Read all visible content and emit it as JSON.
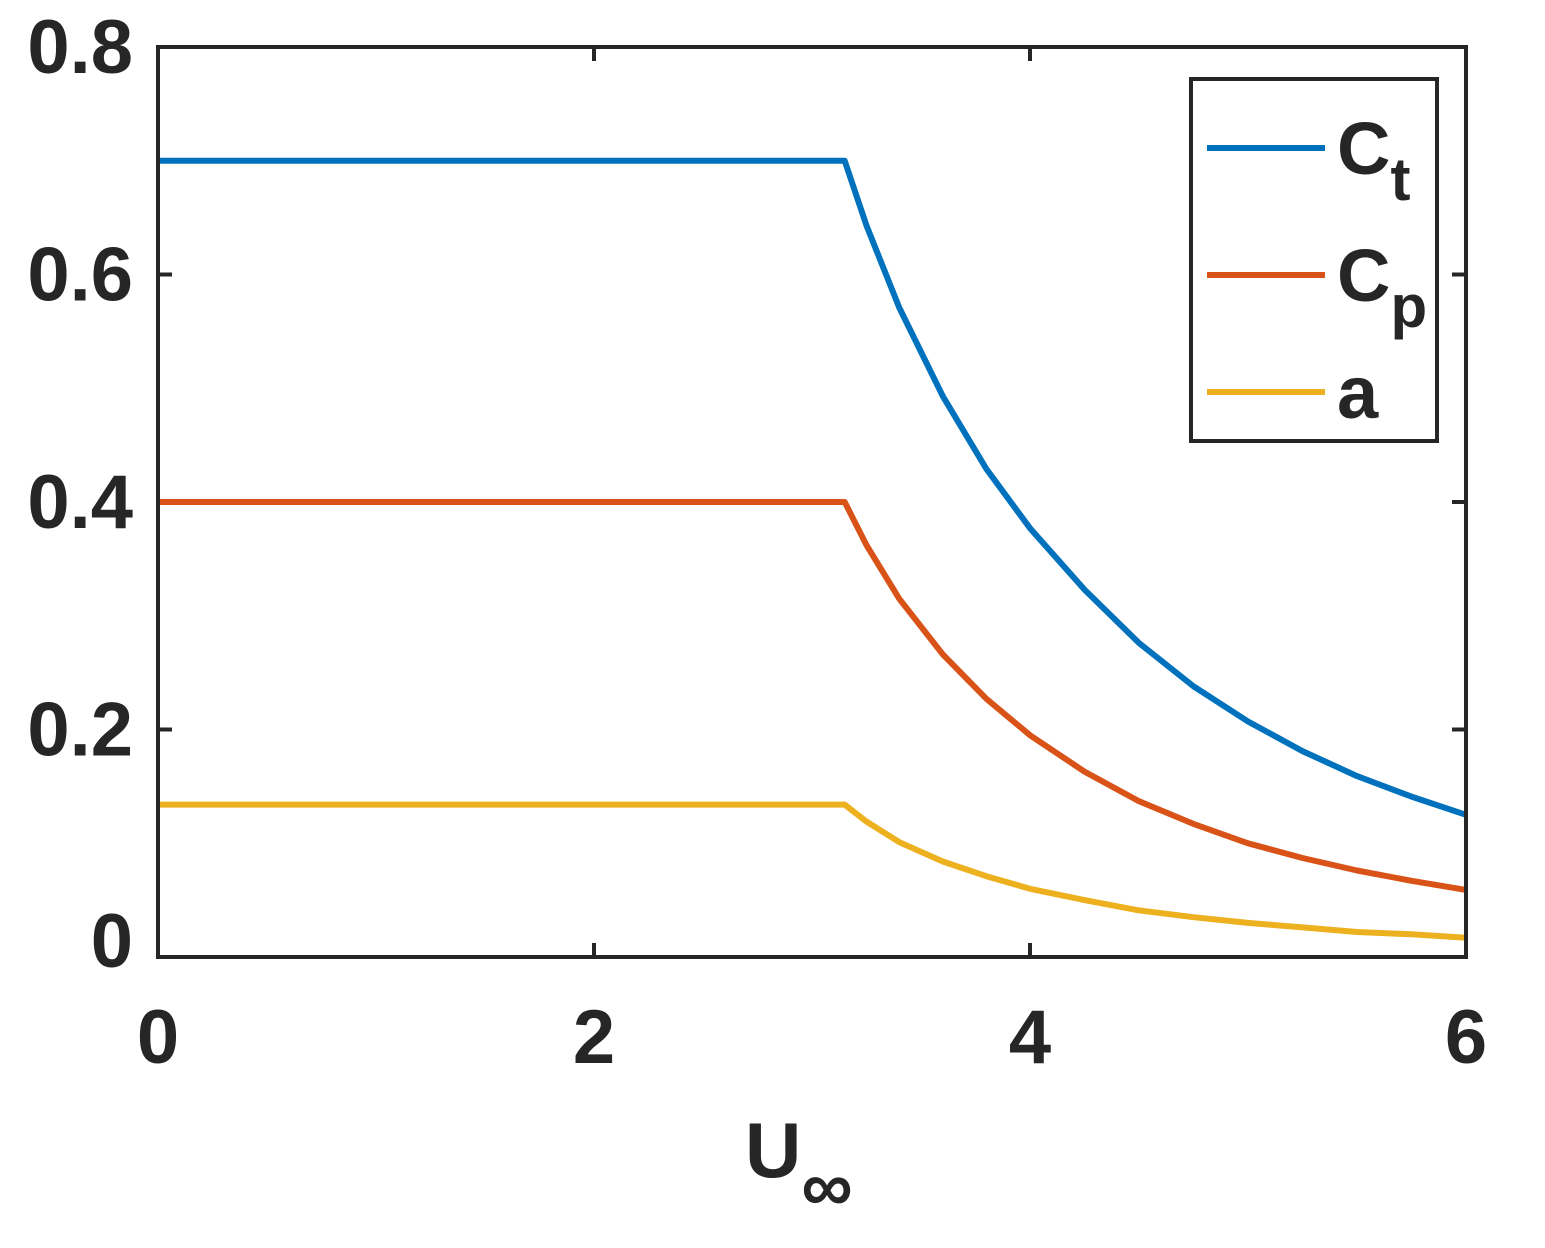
{
  "chart_data": {
    "type": "line",
    "title": "",
    "xlabel": {
      "main": "U",
      "sub": "∞"
    },
    "ylabel": "",
    "xlim": [
      0,
      6
    ],
    "ylim": [
      0,
      0.8
    ],
    "xticks": [
      0,
      2,
      4,
      6
    ],
    "xtick_labels": [
      "0",
      "2",
      "4",
      "6"
    ],
    "yticks": [
      0,
      0.2,
      0.4,
      0.6,
      0.8
    ],
    "ytick_labels": [
      "0",
      "0.2",
      "0.4",
      "0.6",
      "0.8"
    ],
    "grid": false,
    "legend_position": "top-right",
    "series": [
      {
        "name": {
          "main": "C",
          "sub": "t"
        },
        "color": "#0072BD",
        "x": [
          0,
          3.15,
          3.25,
          3.4,
          3.6,
          3.8,
          4.0,
          4.25,
          4.5,
          4.75,
          5.0,
          5.25,
          5.5,
          5.75,
          6.0
        ],
        "values": [
          0.7,
          0.7,
          0.643,
          0.571,
          0.493,
          0.429,
          0.377,
          0.323,
          0.276,
          0.238,
          0.207,
          0.181,
          0.159,
          0.141,
          0.125
        ]
      },
      {
        "name": {
          "main": "C",
          "sub": "p"
        },
        "color": "#D95319",
        "x": [
          0,
          3.15,
          3.25,
          3.4,
          3.6,
          3.8,
          4.0,
          4.25,
          4.5,
          4.75,
          5.0,
          5.25,
          5.5,
          5.75,
          6.0
        ],
        "values": [
          0.4,
          0.4,
          0.362,
          0.315,
          0.266,
          0.227,
          0.195,
          0.163,
          0.137,
          0.117,
          0.1,
          0.087,
          0.076,
          0.067,
          0.059
        ]
      },
      {
        "name": {
          "main": "a",
          "sub": ""
        },
        "color": "#EDB120",
        "x": [
          0,
          3.15,
          3.25,
          3.4,
          3.6,
          3.8,
          4.0,
          4.25,
          4.5,
          4.75,
          5.0,
          5.25,
          5.5,
          5.75,
          6.0
        ],
        "values": [
          0.134,
          0.134,
          0.119,
          0.101,
          0.084,
          0.071,
          0.06,
          0.05,
          0.041,
          0.035,
          0.03,
          0.026,
          0.022,
          0.02,
          0.017
        ]
      }
    ]
  }
}
